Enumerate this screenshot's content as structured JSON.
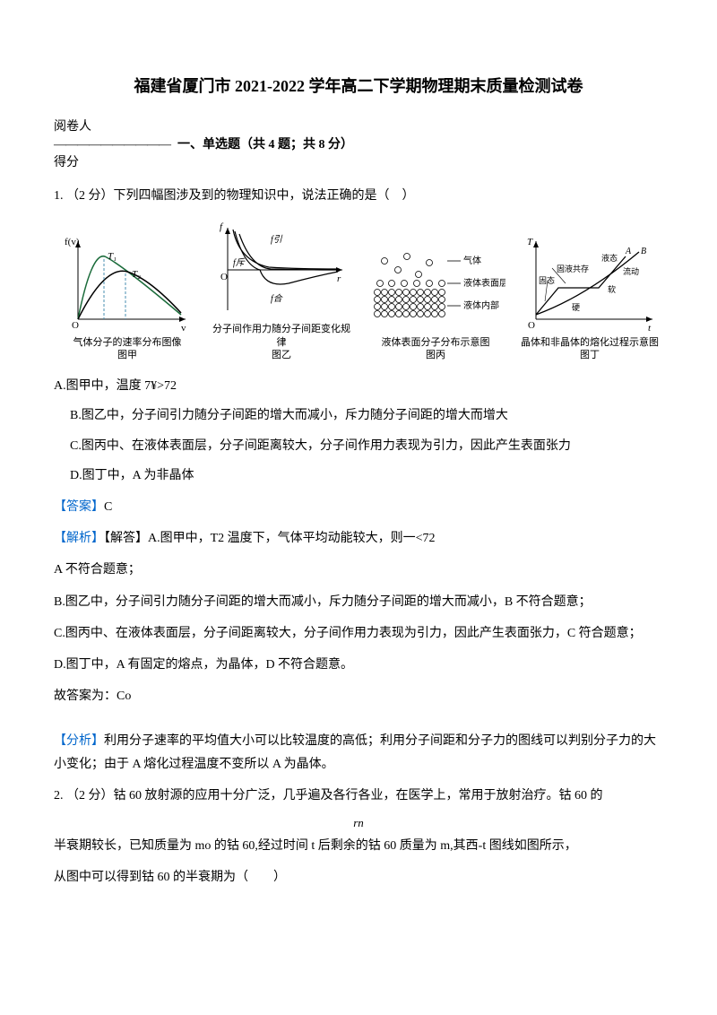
{
  "title": "福建省厦门市 2021-2022 学年高二下学期物理期末质量检测试卷",
  "header": {
    "grader": "阅卷人",
    "dashes": "——————————",
    "score": "得分",
    "section_title": "一、单选题（共 4 题；共 8 分）"
  },
  "q1": {
    "stem": "1. （2 分）下列四幅图涉及到的物理知识中，说法正确的是（　）",
    "fig1_caption": "气体分子的速率分布图像\n图甲",
    "fig2_caption": "分子间作用力随分子间距变化规律\n图乙",
    "fig3_caption": "液体表面分子分布示意图\n图丙",
    "fig3_labels": {
      "gas": "气体",
      "surface": "液体表面层",
      "inner": "液体内部"
    },
    "fig4_caption": "晶体和非晶体的熔化过程示意图\n图丁",
    "fig4_labels": {
      "liquid": "液态",
      "coexist": "固液共存",
      "solid": "固态",
      "flow": "流动",
      "soft": "软",
      "hard": "硬"
    },
    "fig2_labels": {
      "f": "f",
      "fin": "f引",
      "fout": "f斥",
      "fsum": "f合",
      "r": "r"
    },
    "fig1_labels": {
      "y": "f(v)",
      "x": "v",
      "T1": "T₁",
      "T2": "T₂"
    },
    "fig4_axes": {
      "y": "T",
      "x": "t"
    },
    "option_a": "A.图甲中，温度 7¥>72",
    "option_b": "B.图乙中，分子间引力随分子间距的增大而减小，斥力随分子间距的增大而增大",
    "option_c": "C.图丙中、在液体表面层，分子间距离较大，分子间作用力表现为引力，因此产生表面张力",
    "option_d": "D.图丁中，A 为非晶体",
    "answer_label": "【答案】",
    "answer": "C",
    "analysis_label": "【解析】",
    "analysis_intro": "【解答】A.图甲中，T2 温度下，气体平均动能较大，则一<72",
    "line_a_wrong": "A 不符合题意；",
    "line_b": "B.图乙中，分子间引力随分子间距的增大而减小，斥力随分子间距的增大而减小，B 不符合题意；",
    "line_c": "C.图丙中、在液体表面层，分子间距离较大，分子间作用力表现为引力，因此产生表面张力，C 符合题意；",
    "line_d": "D.图丁中，A 有固定的熔点，为晶体，D 不符合题意。",
    "conclusion": "故答案为：Co",
    "fenxi_label": "【分析】",
    "fenxi": "利用分子速率的平均值大小可以比较温度的高低；利用分子间距和分子力的图线可以判别分子力的大小变化；由于 A 熔化过程温度不变所以 A 为晶体。"
  },
  "q2": {
    "stem_line1": "2. （2 分）钴 60 放射源的应用十分广泛，几乎遍及各行各业，在医学上，常用于放射治疗。钴 60 的",
    "rn": "rn",
    "stem_line2": "半衰期较长，已知质量为 mo 的钴 60,经过时间 t 后剩余的钴 60 质量为 m,其西-t 图线如图所示，",
    "stem_line3": "从图中可以得到钴 60 的半衰期为（　　）"
  },
  "colors": {
    "text": "#000000",
    "blue": "#0066cc",
    "bg": "#ffffff",
    "axis": "#000000",
    "curve1": "#1a6b3a",
    "curve2": "#000000",
    "dashed": "#4a8fb0"
  }
}
